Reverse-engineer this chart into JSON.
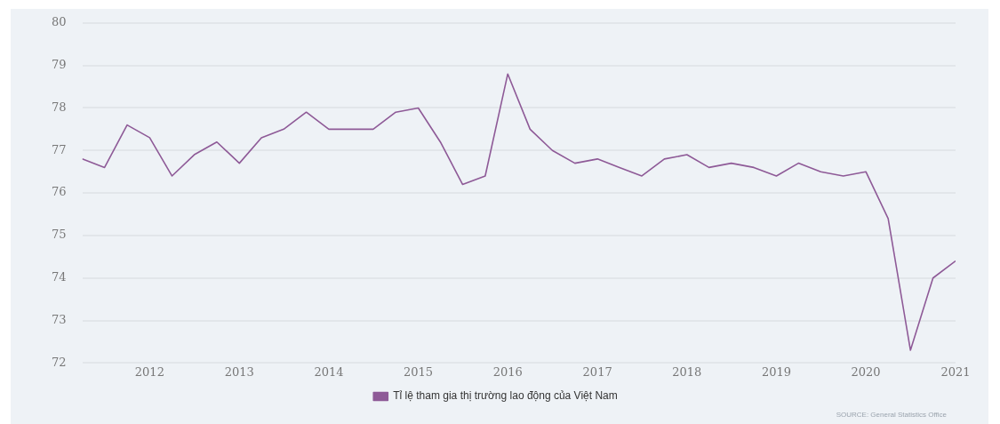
{
  "chart_data": {
    "type": "line",
    "x": [
      "2011-04",
      "2011-07",
      "2011-10",
      "2012-01",
      "2012-04",
      "2012-07",
      "2012-10",
      "2013-01",
      "2013-04",
      "2013-07",
      "2013-10",
      "2014-01",
      "2014-04",
      "2014-07",
      "2014-10",
      "2015-01",
      "2015-04",
      "2015-07",
      "2015-10",
      "2016-01",
      "2016-04",
      "2016-07",
      "2016-10",
      "2017-01",
      "2017-04",
      "2017-07",
      "2017-10",
      "2018-01",
      "2018-04",
      "2018-07",
      "2018-10",
      "2019-01",
      "2019-04",
      "2019-07",
      "2019-10",
      "2020-01",
      "2020-04",
      "2020-07",
      "2020-10",
      "2021-01"
    ],
    "series": [
      {
        "name": "Tỉ lệ tham gia thị trường lao động của Việt Nam",
        "color": "#8e5a97",
        "values": [
          76.8,
          76.6,
          77.6,
          77.3,
          76.4,
          76.9,
          77.2,
          76.7,
          77.3,
          77.5,
          77.9,
          77.5,
          77.5,
          77.5,
          77.9,
          78.0,
          77.2,
          76.2,
          76.4,
          78.8,
          77.5,
          77.0,
          76.7,
          76.8,
          76.6,
          76.4,
          76.8,
          76.9,
          76.6,
          76.7,
          76.6,
          76.4,
          76.7,
          76.5,
          76.4,
          76.5,
          75.4,
          72.3,
          74.0,
          74.4
        ]
      }
    ],
    "xlim": [
      "2011-04",
      "2021-01"
    ],
    "xticks": [
      "2012",
      "2013",
      "2014",
      "2015",
      "2016",
      "2017",
      "2018",
      "2019",
      "2020",
      "2021"
    ],
    "ylim": [
      72,
      80
    ],
    "yticks": [
      72,
      73,
      74,
      75,
      76,
      77,
      78,
      79,
      80
    ],
    "grid": "y",
    "legend": "bottom",
    "marker": "none",
    "line_style": "solid",
    "annotations": [
      "SOURCE: General Statistics Office"
    ]
  }
}
